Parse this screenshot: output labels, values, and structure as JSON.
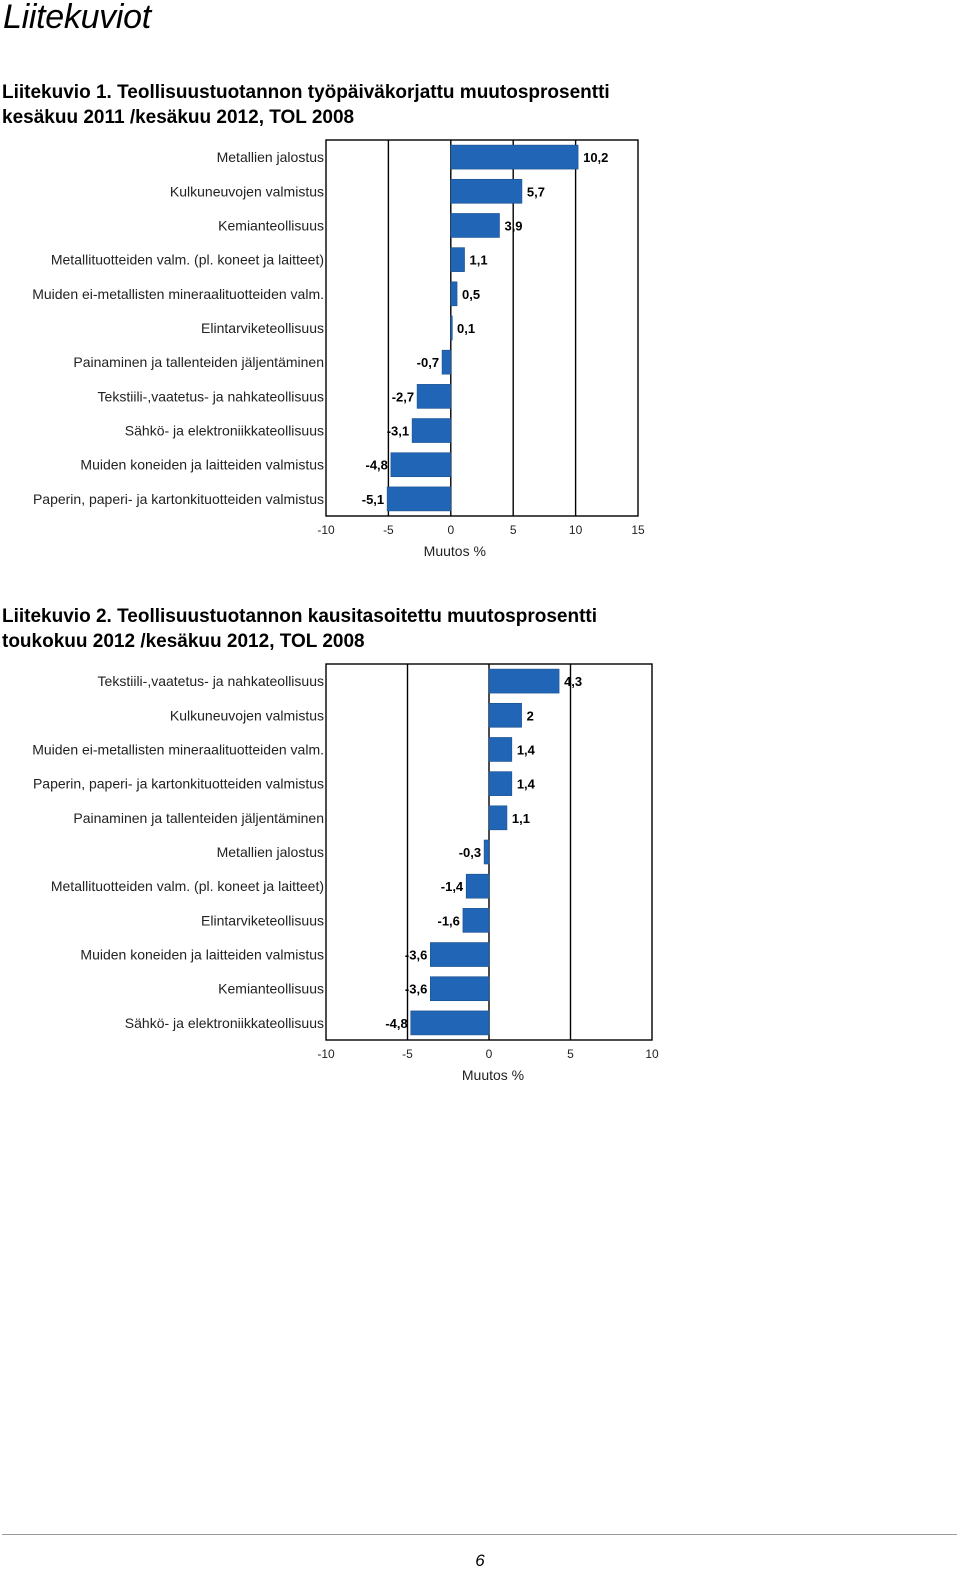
{
  "page": {
    "heading": "Liitekuviot",
    "page_number": "6"
  },
  "figures": [
    {
      "title_line1": "Liitekuvio 1. Teollisuustuotannon työpäiväkorjattu muutosprosentti",
      "title_line2": "kesäkuu 2011 /kesäkuu 2012, TOL 2008"
    },
    {
      "title_line1": "Liitekuvio 2. Teollisuustuotannon kausitasoitettu muutosprosentti",
      "title_line2": "toukokuu 2012 /kesäkuu 2012, TOL 2008"
    }
  ],
  "colors": {
    "bar": "#2166b6",
    "bar_edge": "#1a4f8c",
    "grid": "#000000",
    "frame": "#000000"
  },
  "chart_data": [
    {
      "type": "bar",
      "orientation": "horizontal",
      "title": "Liitekuvio 1. Teollisuustuotannon työpäiväkorjattu muutosprosentti kesäkuu 2011 /kesäkuu 2012, TOL 2008",
      "xlabel": "Muutos  %",
      "ylabel": "",
      "xlim": [
        -10,
        15
      ],
      "xticks": [
        -10,
        -5,
        0,
        5,
        10,
        15
      ],
      "xtick_labels": [
        "-10",
        "-5",
        "0",
        "5",
        "10",
        "15"
      ],
      "grid": "vertical",
      "legend": "none",
      "categories": [
        "Metallien jalostus",
        "Kulkuneuvojen valmistus",
        "Kemianteollisuus",
        "Metallituotteiden valm. (pl. koneet ja laitteet)",
        "Muiden ei-metallisten mineraalituotteiden valm.",
        "Elintarviketeollisuus",
        "Painaminen ja tallenteiden jäljentäminen",
        "Tekstiili-,vaatetus- ja nahkateollisuus",
        "Sähkö- ja elektroniikkateollisuus",
        "Muiden koneiden ja laitteiden valmistus",
        "Paperin, paperi- ja kartonkituotteiden valmistus"
      ],
      "values": [
        10.2,
        5.7,
        3.9,
        1.1,
        0.5,
        0.1,
        -0.7,
        -2.7,
        -3.1,
        -4.8,
        -5.1
      ],
      "value_labels": [
        "10,2",
        "5,7",
        "3,9",
        "1,1",
        "0,5",
        "0,1",
        "-0,7",
        "-2,7",
        "-3,1",
        "-4,8",
        "-5,1"
      ]
    },
    {
      "type": "bar",
      "orientation": "horizontal",
      "title": "Liitekuvio 2. Teollisuustuotannon kausitasoitettu muutosprosentti toukokuu 2012 /kesäkuu 2012, TOL 2008",
      "xlabel": "Muutos  %",
      "ylabel": "",
      "xlim": [
        -10,
        10
      ],
      "xticks": [
        -10,
        -5,
        0,
        5,
        10
      ],
      "xtick_labels": [
        "-10",
        "-5",
        "0",
        "5",
        "10"
      ],
      "grid": "vertical",
      "legend": "none",
      "categories": [
        "Tekstiili-,vaatetus- ja nahkateollisuus",
        "Kulkuneuvojen valmistus",
        "Muiden ei-metallisten mineraalituotteiden valm.",
        "Paperin, paperi- ja kartonkituotteiden valmistus",
        "Painaminen ja tallenteiden jäljentäminen",
        "Metallien jalostus",
        "Metallituotteiden valm. (pl. koneet ja laitteet)",
        "Elintarviketeollisuus",
        "Muiden koneiden ja laitteiden valmistus",
        "Kemianteollisuus",
        "Sähkö- ja elektroniikkateollisuus"
      ],
      "values": [
        4.3,
        2,
        1.4,
        1.4,
        1.1,
        -0.3,
        -1.4,
        -1.6,
        -3.6,
        -3.6,
        -4.8
      ],
      "value_labels": [
        "4,3",
        "2",
        "1,4",
        "1,4",
        "1,1",
        "-0,3",
        "-1,4",
        "-1,6",
        "-3,6",
        "-3,6",
        "-4,8"
      ]
    }
  ]
}
